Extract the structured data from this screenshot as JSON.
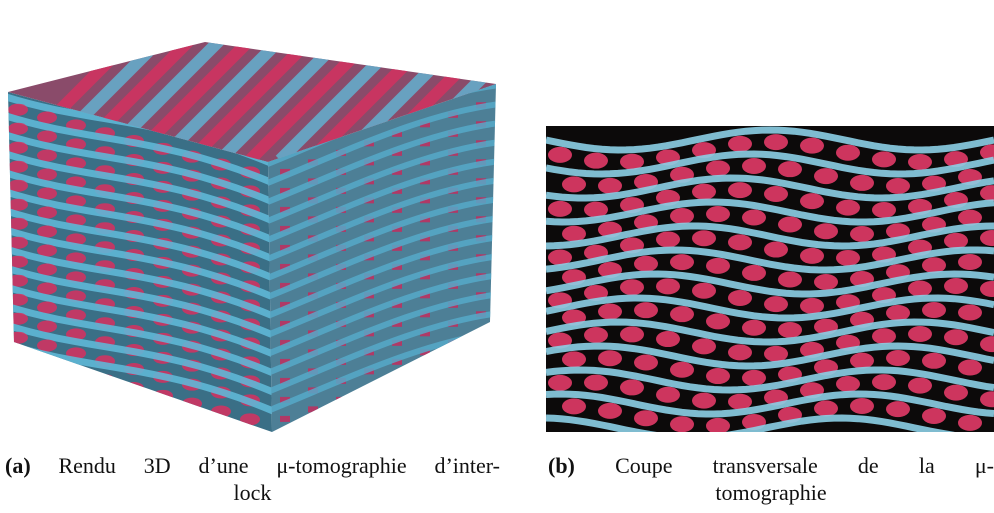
{
  "figures": [
    {
      "label": "(a)",
      "caption_lines": [
        "Rendu 3D d’une μ-tomographie d’inter-",
        "lock"
      ]
    },
    {
      "label": "(b)",
      "caption_lines": [
        "Coupe transversale de la μ-",
        "tomographie"
      ]
    }
  ]
}
